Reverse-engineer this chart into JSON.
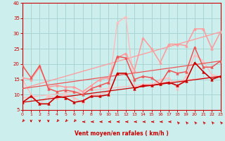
{
  "xlabel": "Vent moyen/en rafales ( km/h )",
  "xlim": [
    0,
    23
  ],
  "ylim": [
    5,
    40
  ],
  "xticks": [
    0,
    1,
    2,
    3,
    4,
    5,
    6,
    7,
    8,
    9,
    10,
    11,
    12,
    13,
    14,
    15,
    16,
    17,
    18,
    19,
    20,
    21,
    22,
    23
  ],
  "yticks": [
    5,
    10,
    15,
    20,
    25,
    30,
    35,
    40
  ],
  "background_color": "#cceeed",
  "grid_color": "#aad4d4",
  "axis_color": "#cc0000",
  "lines": [
    {
      "comment": "dark red line with triangle markers - vent moyen (main)",
      "x": [
        0,
        1,
        2,
        3,
        4,
        5,
        6,
        7,
        8,
        9,
        10,
        11,
        12,
        13,
        14,
        15,
        16,
        17,
        18,
        19,
        20,
        21,
        22,
        23
      ],
      "y": [
        7.5,
        9.5,
        7.0,
        7.0,
        9.5,
        9.0,
        7.5,
        8.0,
        9.5,
        9.5,
        10.0,
        17.0,
        17.0,
        12.0,
        13.0,
        13.0,
        13.5,
        14.0,
        13.0,
        14.5,
        20.5,
        17.5,
        15.0,
        16.0
      ],
      "color": "#cc0000",
      "lw": 1.2,
      "marker": "^",
      "ms": 2.5,
      "zorder": 5
    },
    {
      "comment": "dark red regression line (no markers)",
      "x": [
        0,
        23
      ],
      "y": [
        7.5,
        16.0
      ],
      "color": "#cc0000",
      "lw": 0.9,
      "marker": null,
      "ms": 0,
      "zorder": 4
    },
    {
      "comment": "medium red line with triangle markers",
      "x": [
        0,
        1,
        2,
        3,
        4,
        5,
        6,
        7,
        8,
        9,
        10,
        11,
        12,
        13,
        14,
        15,
        16,
        17,
        18,
        19,
        20,
        21,
        22,
        23
      ],
      "y": [
        19.5,
        15.5,
        19.5,
        12.0,
        11.0,
        11.5,
        11.0,
        10.0,
        12.0,
        13.0,
        14.0,
        22.5,
        22.0,
        15.0,
        16.0,
        15.5,
        13.5,
        18.0,
        17.0,
        17.5,
        25.5,
        19.0,
        19.0,
        21.0
      ],
      "color": "#ee5555",
      "lw": 1.1,
      "marker": "^",
      "ms": 2.5,
      "zorder": 4
    },
    {
      "comment": "medium red regression line (no markers)",
      "x": [
        0,
        23
      ],
      "y": [
        12.0,
        21.0
      ],
      "color": "#ee5555",
      "lw": 0.9,
      "marker": null,
      "ms": 0,
      "zorder": 3
    },
    {
      "comment": "light pink line with triangle markers - rafales main",
      "x": [
        0,
        1,
        2,
        3,
        4,
        5,
        6,
        7,
        8,
        9,
        10,
        11,
        12,
        13,
        14,
        15,
        16,
        17,
        18,
        19,
        20,
        21,
        22,
        23
      ],
      "y": [
        15.5,
        15.0,
        19.0,
        12.5,
        13.0,
        12.5,
        12.5,
        11.0,
        13.0,
        15.0,
        15.5,
        22.0,
        23.5,
        18.0,
        28.5,
        25.0,
        20.5,
        26.5,
        26.5,
        26.0,
        31.5,
        31.5,
        25.0,
        30.5
      ],
      "color": "#ff9999",
      "lw": 1.1,
      "marker": "^",
      "ms": 2.5,
      "zorder": 3
    },
    {
      "comment": "light pink regression line",
      "x": [
        0,
        23
      ],
      "y": [
        12.0,
        30.5
      ],
      "color": "#ff9999",
      "lw": 0.9,
      "marker": null,
      "ms": 0,
      "zorder": 2
    },
    {
      "comment": "very light pink - rafales extremes",
      "x": [
        0,
        1,
        2,
        3,
        4,
        5,
        6,
        7,
        8,
        9,
        10,
        11,
        12,
        13,
        14,
        15,
        16,
        17,
        18,
        19,
        20,
        21,
        22,
        23
      ],
      "y": [
        15.0,
        10.0,
        7.0,
        9.5,
        9.0,
        10.0,
        9.0,
        7.5,
        10.0,
        10.0,
        11.0,
        33.5,
        35.5,
        12.0,
        13.5,
        13.0,
        15.0,
        15.5,
        12.0,
        16.0,
        23.0,
        21.0,
        16.5,
        16.0
      ],
      "color": "#ffbbbb",
      "lw": 1.0,
      "marker": "^",
      "ms": 2.5,
      "zorder": 2
    },
    {
      "comment": "very light regression line",
      "x": [
        0,
        23
      ],
      "y": [
        9.0,
        16.0
      ],
      "color": "#ffbbbb",
      "lw": 0.9,
      "marker": null,
      "ms": 0,
      "zorder": 1
    }
  ],
  "arrows": {
    "symbols": [
      "arrow_dl",
      "arrow_d",
      "arrow_d",
      "arrow_d",
      "arrow_dl",
      "arrow_dl",
      "arrow_dl",
      "arrow_l",
      "arrow_l",
      "arrow_l",
      "arrow_l",
      "arrow_l",
      "arrow_l",
      "arrow_l",
      "arrow_l",
      "arrow_l",
      "arrow_l",
      "arrow_l",
      "arrow_ul",
      "arrow_ul",
      "arrow_ul",
      "arrow_ul",
      "arrow_ul",
      "arrow_ul"
    ],
    "dx_map": {
      "arrow_dl": -0.6,
      "arrow_d": 0.0,
      "arrow_l": -1.0,
      "arrow_ul": -0.6
    },
    "dy_map": {
      "arrow_dl": -0.6,
      "arrow_d": -1.0,
      "arrow_l": 0.0,
      "arrow_ul": 0.6
    }
  }
}
